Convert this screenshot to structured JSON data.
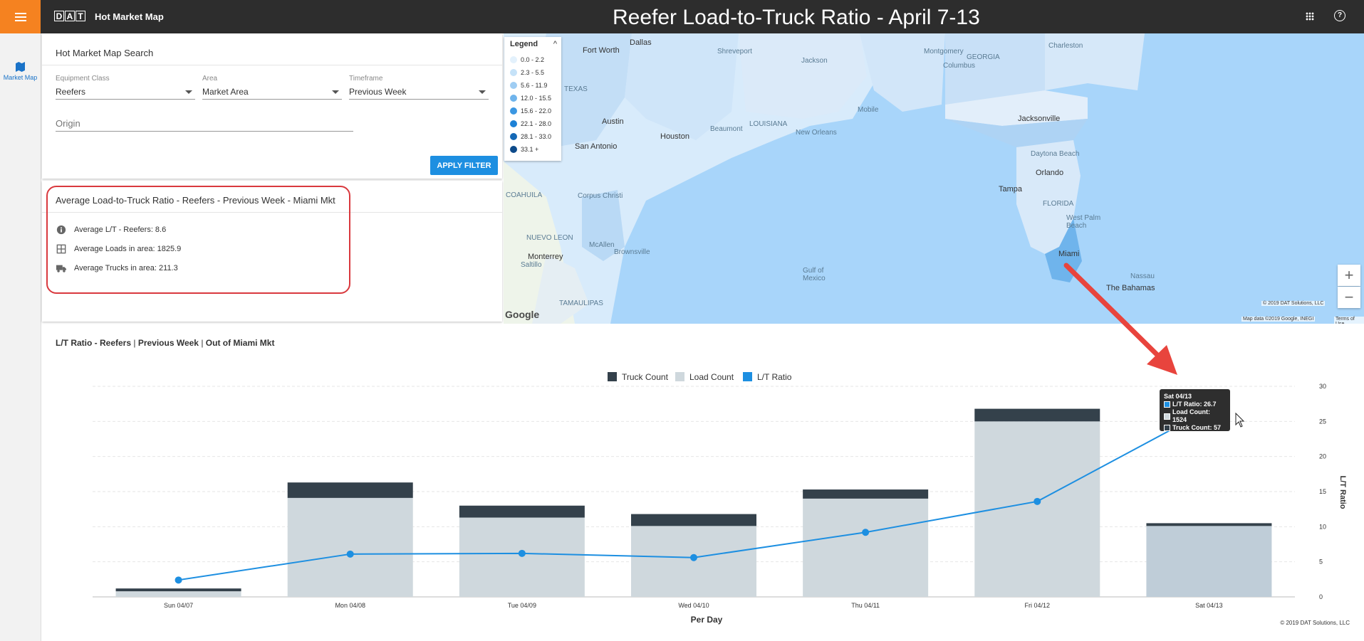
{
  "app": {
    "brand_letters": [
      "D",
      "A",
      "T"
    ],
    "name": "Hot Market Map",
    "page_title": "Reefer Load-to-Truck Ratio - April 7-13",
    "help_glyph": "?",
    "icons": {
      "menu": "hamburger-menu-icon",
      "apps": "apps-grid-icon",
      "help": "help-circle-icon"
    }
  },
  "sidebar": {
    "items": [
      {
        "label": "Market Map",
        "icon": "map-icon",
        "active": true
      }
    ]
  },
  "search": {
    "title": "Hot Market Map Search",
    "fields": [
      {
        "label": "Equipment Class",
        "value": "Reefers"
      },
      {
        "label": "Area",
        "value": "Market Area"
      },
      {
        "label": "Timeframe",
        "value": "Previous Week"
      }
    ],
    "origin_placeholder": "Origin",
    "apply_label": "APPLY FILTER"
  },
  "stats": {
    "title": "Average Load-to-Truck Ratio - Reefers - Previous Week - Miami Mkt",
    "items": [
      {
        "icon": "info-icon",
        "label": "Average L/T - Reefers: 8.6"
      },
      {
        "icon": "grid-table-icon",
        "label": "Average Loads in area: 1825.9"
      },
      {
        "icon": "truck-icon",
        "label": "Average Trucks in area: 211.3"
      }
    ]
  },
  "map": {
    "legend_title": "Legend",
    "legend_toggle": "^",
    "legend": [
      {
        "range": "0.0 - 2.2",
        "color": "#e3f1fc"
      },
      {
        "range": "2.3 - 5.5",
        "color": "#c5e2f8"
      },
      {
        "range": "5.6 - 11.9",
        "color": "#9fcdf3"
      },
      {
        "range": "12.0 - 15.5",
        "color": "#6fb4ec"
      },
      {
        "range": "15.6 - 22.0",
        "color": "#3b97e2"
      },
      {
        "range": "22.1 - 28.0",
        "color": "#1d81d6"
      },
      {
        "range": "28.1 - 33.0",
        "color": "#1468b5"
      },
      {
        "range": "33.1 +",
        "color": "#0d4a8a"
      }
    ],
    "places": [
      "Dallas",
      "Fort Worth",
      "Shreveport",
      "Jackson",
      "Montgomery",
      "Columbus",
      "GEORGIA",
      "Charleston",
      "TEXAS",
      "Austin",
      "LOUISIANA",
      "Mobile",
      "New Orleans",
      "Houston",
      "Beaumont",
      "Jacksonville",
      "San Antonio",
      "Daytona Beach",
      "Orlando",
      "Tampa",
      "FLORIDA",
      "West Palm Beach",
      "Miami",
      "Corpus Christi",
      "COAHUILA",
      "NUEVO LEON",
      "McAllen",
      "Monterrey",
      "Saltillo",
      "Brownsville",
      "Gulf of Mexico",
      "TAMAULIPAS",
      "Nassau",
      "The Bahamas"
    ],
    "zoom_in": "+",
    "zoom_out": "−",
    "copyright": "© 2019 DAT Solutions, LLC",
    "attribution": "Map data ©2019 Google, INEGI",
    "terms": "Terms of Use",
    "google": "Google"
  },
  "chart_title_parts": [
    "L/T Ratio - Reefers",
    "Previous Week",
    "Out of Miami Mkt"
  ],
  "chart_data": {
    "type": "bar",
    "categories": [
      "Sun 04/07",
      "Mon 04/08",
      "Tue 04/09",
      "Wed 04/10",
      "Thu 04/11",
      "Fri 04/12",
      "Sat 04/13"
    ],
    "series": [
      {
        "name": "Truck Count",
        "kind": "bar",
        "color": "#34414b",
        "values": [
          0.4,
          2.2,
          1.7,
          1.7,
          1.3,
          1.8,
          0.4
        ]
      },
      {
        "name": "Load Count",
        "kind": "bar",
        "color": "#cfd8dd",
        "values": [
          0.8,
          14.1,
          11.3,
          10.1,
          14.0,
          25.0,
          10.1
        ]
      },
      {
        "name": "L/T Ratio",
        "kind": "line",
        "color": "#1d8fe1",
        "values": [
          2.4,
          6.1,
          6.2,
          5.6,
          9.2,
          13.6,
          26.7
        ]
      }
    ],
    "xlabel": "Per Day",
    "ylabel": "L/T Ratio",
    "ylim": [
      0,
      30
    ],
    "yticks": [
      0,
      5,
      10,
      15,
      20,
      25,
      30
    ],
    "legend_position": "top-center",
    "grid": true,
    "tooltip": {
      "title": "Sat 04/13",
      "rows": [
        "L/T Ratio: 26.7",
        "Load Count: 1524",
        "Truck Count: 57"
      ]
    },
    "copyright": "© 2019 DAT Solutions, LLC"
  },
  "colors": {
    "accent": "#f58220",
    "topbar": "#2d2d2d",
    "primary": "#1d8fe1",
    "highlight": "#d9393e"
  }
}
